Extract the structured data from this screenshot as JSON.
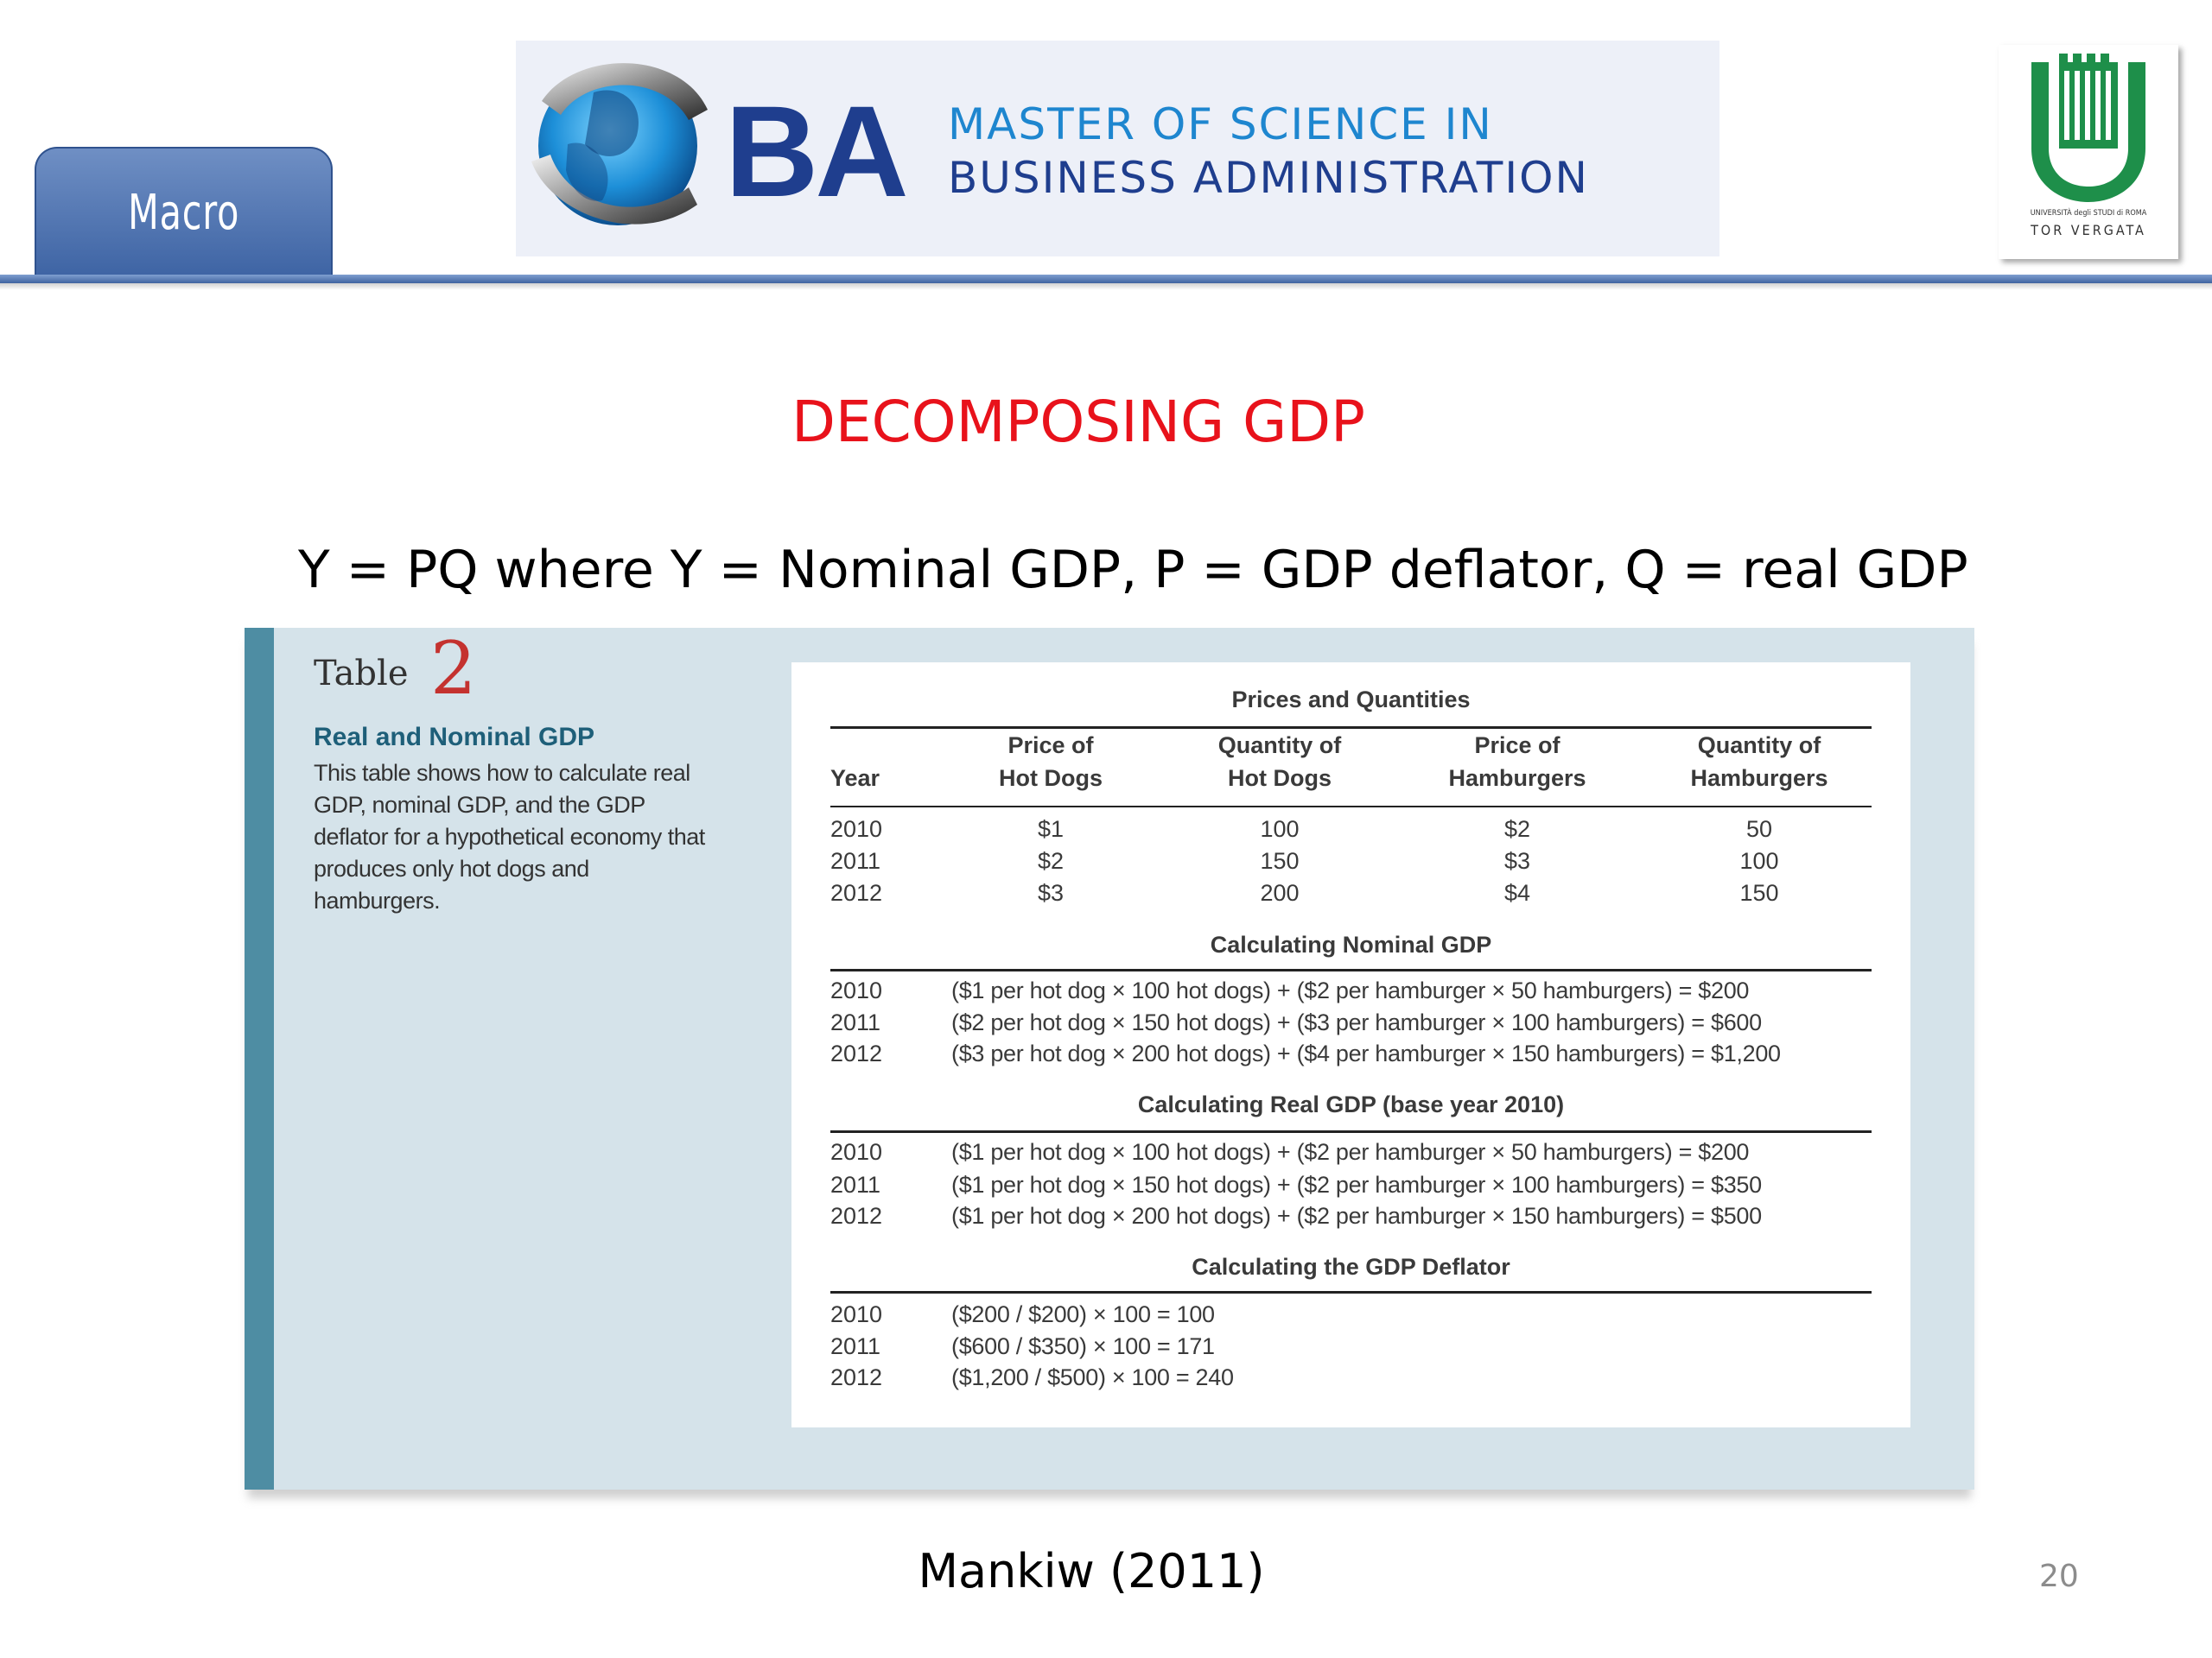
{
  "header": {
    "tab_label": "Macro",
    "banner": {
      "ba_letters": "BA",
      "line1": "MASTER OF SCIENCE IN",
      "line2": "BUSINESS ADMINISTRATION"
    },
    "university_logo": {
      "caption_small": "UNIVERSITÀ degli STUDI di ROMA",
      "caption_big": "TOR VERGATA"
    }
  },
  "title": "DECOMPOSING GDP",
  "formula": "Y = PQ where  Y = Nominal GDP, P = GDP deflator, Q = real GDP",
  "table": {
    "caption_word": "Table",
    "caption_number": "2",
    "subtitle": "Real and Nominal GDP",
    "description": "This table shows how to calculate real GDP, nominal GDP, and the GDP deflator for a hypothetical economy that produces only hot dogs and hamburgers.",
    "prices_section": {
      "title": "Prices and Quantities",
      "headers": {
        "year": "Year",
        "price_hot_dogs_1": "Price of",
        "price_hot_dogs_2": "Hot Dogs",
        "qty_hot_dogs_1": "Quantity of",
        "qty_hot_dogs_2": "Hot Dogs",
        "price_hamburgers_1": "Price of",
        "price_hamburgers_2": "Hamburgers",
        "qty_hamburgers_1": "Quantity of",
        "qty_hamburgers_2": "Hamburgers"
      },
      "rows": [
        {
          "year": "2010",
          "price_hot_dogs": "$1",
          "qty_hot_dogs": "100",
          "price_hamburgers": "$2",
          "qty_hamburgers": "50"
        },
        {
          "year": "2011",
          "price_hot_dogs": "$2",
          "qty_hot_dogs": "150",
          "price_hamburgers": "$3",
          "qty_hamburgers": "100"
        },
        {
          "year": "2012",
          "price_hot_dogs": "$3",
          "qty_hot_dogs": "200",
          "price_hamburgers": "$4",
          "qty_hamburgers": "150"
        }
      ]
    },
    "nominal_section": {
      "title": "Calculating Nominal GDP",
      "rows": [
        {
          "year": "2010",
          "calc": "($1 per hot dog × 100 hot dogs) + ($2 per hamburger × 50 hamburgers) = $200"
        },
        {
          "year": "2011",
          "calc": "($2 per hot dog × 150 hot dogs) + ($3 per hamburger × 100 hamburgers) = $600"
        },
        {
          "year": "2012",
          "calc": "($3 per hot dog × 200 hot dogs) + ($4 per hamburger × 150 hamburgers) = $1,200"
        }
      ]
    },
    "real_section": {
      "title": "Calculating Real GDP (base year 2010)",
      "rows": [
        {
          "year": "2010",
          "calc": "($1 per hot dog × 100 hot dogs) + ($2 per hamburger × 50 hamburgers) = $200"
        },
        {
          "year": "2011",
          "calc": "($1 per hot dog × 150 hot dogs) + ($2 per hamburger × 100 hamburgers) = $350"
        },
        {
          "year": "2012",
          "calc": "($1 per hot dog × 200 hot dogs) + ($2 per hamburger × 150 hamburgers) = $500"
        }
      ]
    },
    "deflator_section": {
      "title": "Calculating the GDP Deflator",
      "rows": [
        {
          "year": "2010",
          "calc": "($200 / $200) × 100 = 100"
        },
        {
          "year": "2011",
          "calc": "($600 / $350) × 100 = 171"
        },
        {
          "year": "2012",
          "calc": "($1,200 / $500) × 100 = 240"
        }
      ]
    }
  },
  "source": "Mankiw (2011)",
  "page_number": "20"
}
